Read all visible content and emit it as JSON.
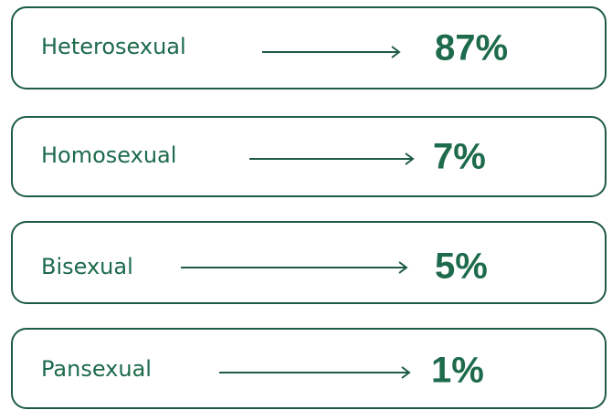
{
  "items": [
    {
      "label": "Heterosexual",
      "value": "87%"
    },
    {
      "label": "Homosexual",
      "value": "7%"
    },
    {
      "label": "Bisexual",
      "value": "5%"
    },
    {
      "label": "Pansexual",
      "value": "1%"
    }
  ]
}
